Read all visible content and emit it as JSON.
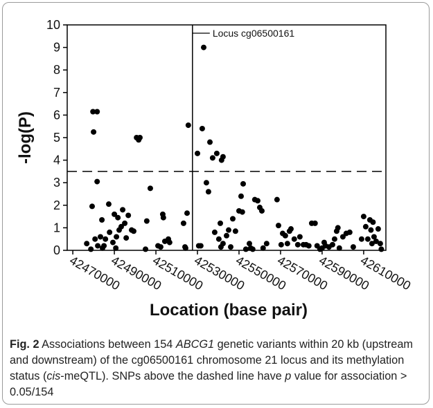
{
  "chart_data": {
    "type": "scatter",
    "xlabel": "Location (base pair)",
    "ylabel": "-log(P)",
    "xlim": [
      42467300,
      42620700
    ],
    "ylim": [
      0,
      10
    ],
    "xticks": [
      42470000,
      42490000,
      42510000,
      42530000,
      42550000,
      42570000,
      42590000,
      42610000
    ],
    "yticks": [
      0,
      1,
      2,
      3,
      4,
      5,
      6,
      7,
      8,
      9,
      10
    ],
    "color": "#000000",
    "threshold": 3.5,
    "locus": {
      "x": 42527600,
      "label": "Locus cg06500161"
    },
    "x": [
      42476700,
      42478700,
      42479300,
      42479700,
      42480000,
      42480700,
      42481700,
      42481700,
      42482000,
      42483300,
      42484000,
      42484300,
      42485000,
      42485700,
      42487300,
      42487700,
      42489300,
      42490000,
      42490700,
      42491000,
      42491700,
      42492300,
      42493300,
      42494000,
      42495000,
      42495700,
      42496700,
      42498300,
      42499300,
      42500700,
      42501700,
      42502300,
      42505000,
      42505600,
      42507300,
      42511000,
      42512300,
      42513300,
      42513600,
      42514300,
      42516000,
      42516600,
      42523300,
      42524000,
      42524300,
      42525000,
      42525600,
      42530000,
      42530600,
      42531600,
      42532300,
      42533000,
      42534300,
      42535300,
      42536000,
      42537300,
      42538300,
      42539300,
      42540300,
      42541000,
      42541300,
      42541600,
      42542300,
      42542300,
      42544000,
      42545000,
      42546000,
      42547000,
      42548300,
      42550000,
      42551000,
      42551600,
      42552000,
      42553300,
      42555000,
      42555600,
      42556600,
      42557600,
      42559000,
      42560000,
      42561000,
      42561600,
      42563300,
      42568300,
      42569000,
      42570300,
      42571000,
      42572300,
      42573300,
      42574300,
      42575000,
      42576600,
      42578300,
      42579300,
      42581000,
      42582300,
      42583600,
      42585000,
      42586600,
      42587600,
      42589000,
      42590000,
      42591000,
      42591600,
      42593300,
      42595000,
      42596000,
      42597000,
      42597600,
      42598300,
      42600000,
      42601600,
      42603300,
      42605000,
      42609000,
      42610000,
      42611000,
      42612000,
      42613000,
      42613500,
      42614000,
      42614500,
      42615000,
      42616000,
      42617000,
      42618000,
      42618500
    ],
    "values": [
      0.3,
      0.05,
      1.95,
      6.15,
      5.25,
      0.5,
      6.15,
      3.05,
      0.2,
      0.6,
      1.35,
      0.1,
      0.2,
      0.5,
      2.05,
      0.8,
      0.35,
      1.6,
      0.1,
      0.6,
      1.45,
      0.9,
      1.05,
      1.8,
      1.2,
      0.55,
      1.55,
      0.9,
      0.85,
      5.0,
      4.9,
      5.0,
      0.05,
      1.3,
      2.75,
      0.2,
      0.15,
      1.6,
      1.45,
      0.4,
      0.5,
      0.35,
      1.2,
      0.15,
      0.1,
      1.65,
      5.55,
      4.3,
      0.2,
      0.2,
      5.4,
      9.0,
      3.0,
      2.6,
      4.8,
      4.1,
      0.8,
      4.3,
      0.5,
      1.2,
      0.15,
      4.0,
      4.15,
      0.3,
      0.65,
      0.9,
      0.15,
      1.4,
      0.85,
      1.75,
      2.4,
      1.7,
      2.95,
      0.05,
      0.3,
      0.1,
      0.05,
      2.25,
      2.2,
      1.9,
      1.75,
      0.1,
      0.3,
      2.25,
      1.1,
      0.25,
      0.75,
      0.65,
      0.3,
      0.85,
      0.95,
      0.5,
      0.25,
      0.6,
      0.25,
      0.25,
      0.2,
      1.2,
      1.2,
      0.2,
      0.05,
      0.1,
      0.35,
      0.2,
      0.15,
      0.25,
      0.5,
      0.85,
      1.0,
      0.1,
      0.6,
      0.75,
      0.8,
      0.15,
      0.5,
      1.5,
      1.05,
      0.5,
      1.35,
      0.9,
      0.3,
      1.25,
      0.6,
      0.4,
      0.95,
      0.3,
      0.05
    ]
  },
  "caption": {
    "label": "Fig. 2",
    "runs": [
      {
        "text": " Associations between 154 "
      },
      {
        "text": "ABCG1",
        "italic": true
      },
      {
        "text": " genetic variants within 20 kb (upstream and downstream) of the cg06500161 chromosome 21 locus and its methylation status ("
      },
      {
        "text": "cis",
        "italic": true
      },
      {
        "text": "-meQTL). SNPs above the dashed line have "
      },
      {
        "text": "p",
        "italic": true
      },
      {
        "text": " value for association > 0.05/154"
      }
    ]
  }
}
